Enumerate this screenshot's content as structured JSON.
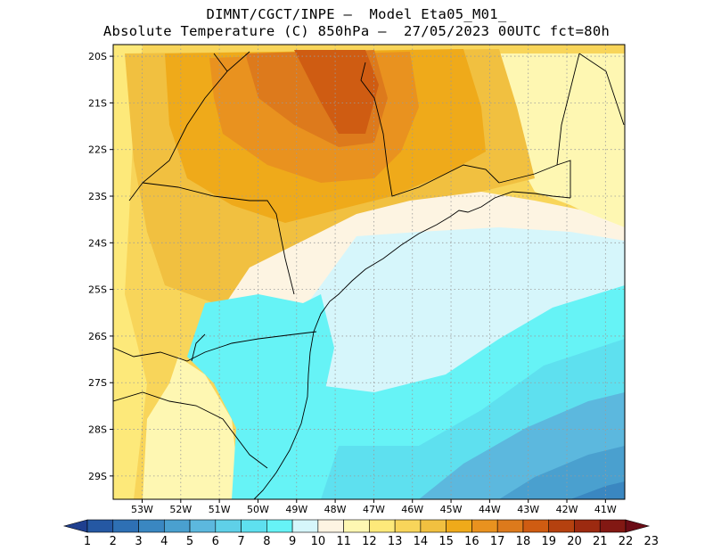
{
  "header": {
    "line1": "DIMNT/CGCT/INPE –  Model Eta05_M01_",
    "line2": "Absolute Temperature (C) 850hPa –  27/05/2023 00UTC fct=80h"
  },
  "map": {
    "lat_labels": [
      "20S",
      "21S",
      "22S",
      "23S",
      "24S",
      "25S",
      "26S",
      "27S",
      "28S",
      "29S"
    ],
    "lon_labels": [
      "53W",
      "52W",
      "51W",
      "50W",
      "49W",
      "48W",
      "47W",
      "46W",
      "45W",
      "44W",
      "43W",
      "42W",
      "41W"
    ],
    "lat_range": [
      -29.5,
      -19.75
    ],
    "lon_range": [
      -53.75,
      -40.5
    ],
    "grid": true
  },
  "colorbar": {
    "labels": [
      "1",
      "2",
      "3",
      "4",
      "5",
      "6",
      "7",
      "8",
      "9",
      "10",
      "11",
      "12",
      "13",
      "14",
      "15",
      "16",
      "17",
      "18",
      "19",
      "20",
      "21",
      "22",
      "23"
    ],
    "colors": [
      "#1f3f8f",
      "#2558a3",
      "#2e70b4",
      "#3a87c1",
      "#4aa0cf",
      "#5cb8de",
      "#5fd0e8",
      "#5ee0ef",
      "#66f3f6",
      "#d6f6fb",
      "#fdf4e2",
      "#fef7b2",
      "#fde97a",
      "#f8d55a",
      "#f1c040",
      "#efaa1a",
      "#e9921f",
      "#dd7a1c",
      "#cf5c12",
      "#b5410f",
      "#9c2a10",
      "#821813",
      "#6b0c16"
    ]
  },
  "legend_colors": {
    "ocean_warm": "#d6f6fb",
    "ocean_cold": "#5ee0ef",
    "land_warm": "#e9921f",
    "land_mild": "#f8d55a"
  }
}
